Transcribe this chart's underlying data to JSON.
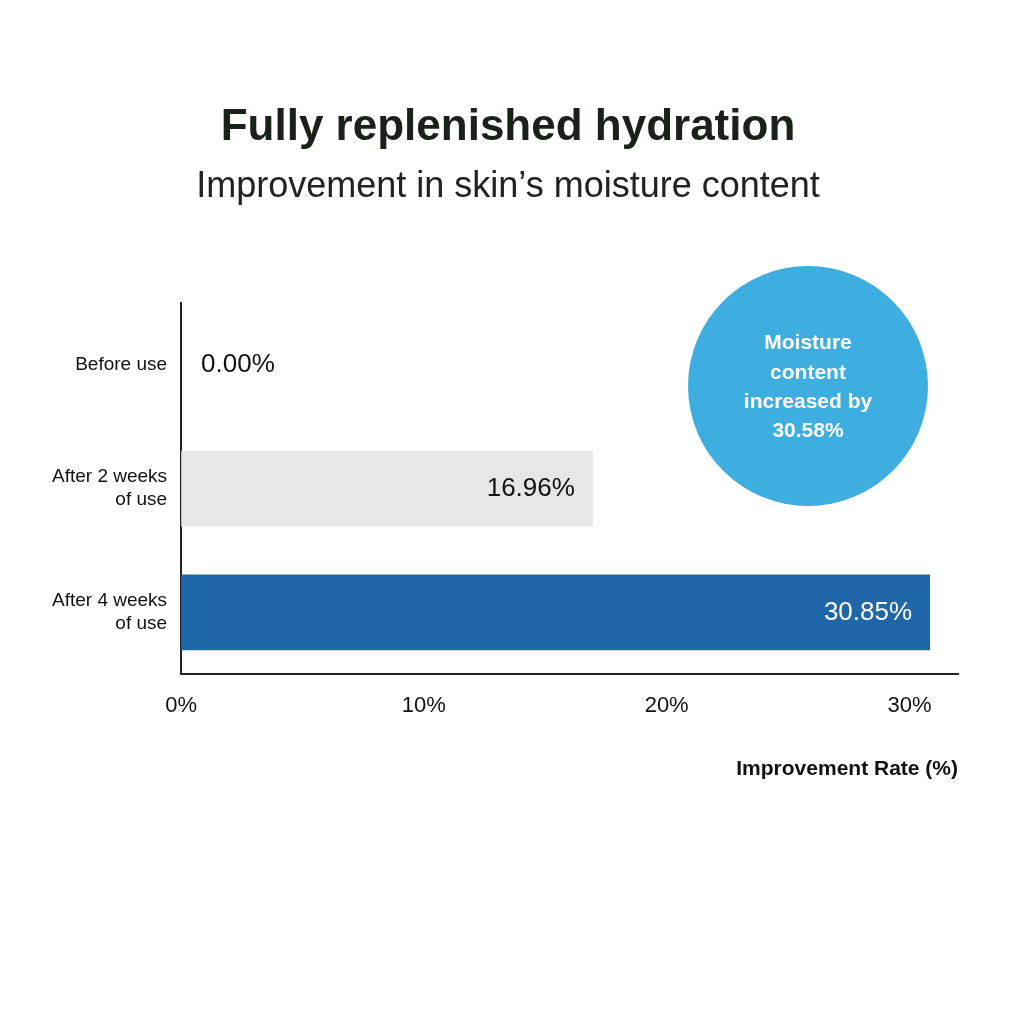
{
  "chart_data": {
    "type": "bar",
    "title": "Fully replenished hydration",
    "subtitle": "Improvement in skin’s moisture content",
    "orientation": "horizontal",
    "categories": [
      "Before use",
      "After 2 weeks of use",
      "After 4 weeks of use"
    ],
    "values": [
      0,
      16.96,
      30.85
    ],
    "colors": [
      "#e6e6e6",
      "#e6e6e6",
      "#1f67a8"
    ],
    "value_labels": [
      "0.00%",
      "16.96%",
      "30.85%"
    ],
    "xlim": [
      0,
      32
    ],
    "xticks": [
      {
        "value": 0,
        "label": "0%"
      },
      {
        "value": 10,
        "label": "10%"
      },
      {
        "value": 20,
        "label": "20%"
      },
      {
        "value": 30,
        "label": "30%"
      }
    ],
    "xlabel": "Improvement Rate (%)",
    "annotations": [
      "Moisture content increased by 30.58%"
    ],
    "grid": false,
    "legend": false
  }
}
